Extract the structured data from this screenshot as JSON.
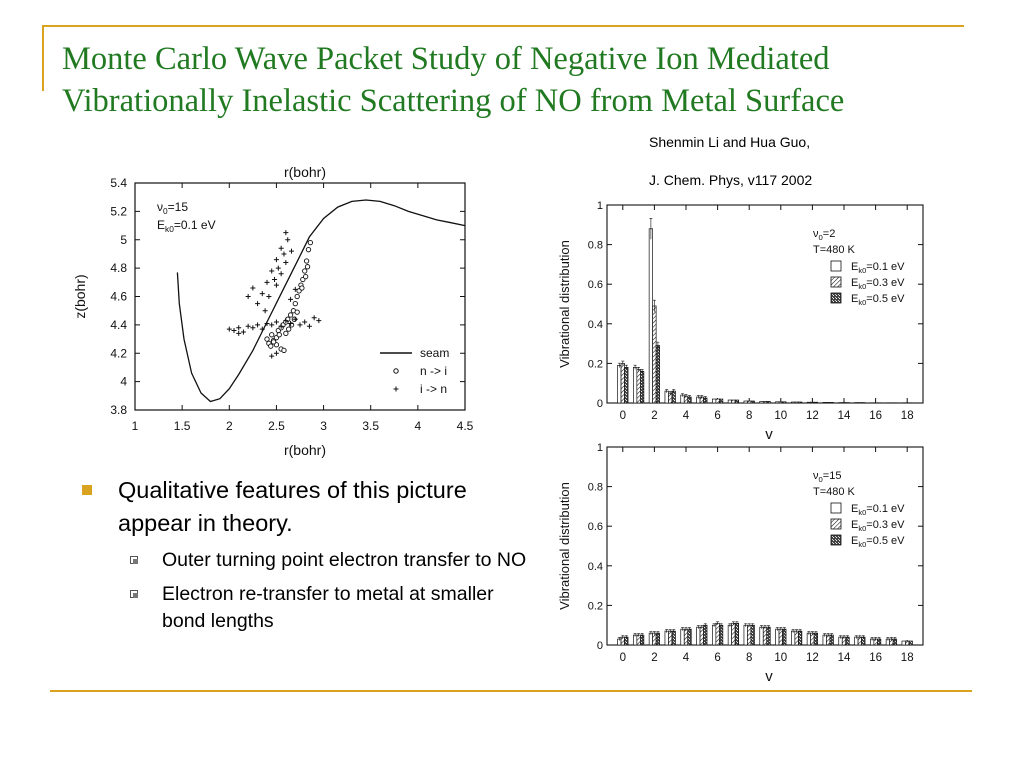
{
  "slide": {
    "title_lines": [
      "Monte Carlo Wave Packet Study of Negative Ion Mediated",
      "Vibrationally Inelastic Scattering of NO from Metal Surface"
    ],
    "citation_authors": "Shenmin Li and Hua Guo,",
    "citation_journal": "J. Chem. Phys, v117 2002",
    "bullets": [
      {
        "text": "Qualitative features of this picture appear in theory.",
        "sub": [
          "Outer turning point electron transfer to NO",
          "Electron re-transfer to metal at smaller bond lengths"
        ]
      }
    ],
    "colors": {
      "title": "#217a21",
      "accent": "#d9a31f"
    }
  },
  "chart_data": [
    {
      "type": "scatter",
      "xlabel": "r(bohr)",
      "top_label": "r(bohr)",
      "ylabel": "z(bohr)",
      "xlim": [
        1,
        4.5
      ],
      "ylim": [
        3.8,
        5.4
      ],
      "xticks": [
        "1",
        "1.5",
        "2",
        "2.5",
        "3",
        "3.5",
        "4",
        "4.5"
      ],
      "yticks": [
        "3.8",
        "4",
        "4.2",
        "4.4",
        "4.6",
        "4.8",
        "5",
        "5.2",
        "5.4"
      ],
      "annotation": {
        "v": "ν",
        "v_sub": "0",
        "v_val": "=15",
        "e": "E",
        "e_sub": "k0",
        "e_val": "=0.1 eV"
      },
      "legend": [
        "seam",
        "n -> i",
        "i -> n"
      ],
      "series": [
        {
          "name": "seam",
          "kind": "line",
          "x": [
            1.45,
            1.47,
            1.52,
            1.6,
            1.7,
            1.8,
            1.9,
            2.0,
            2.1,
            2.25,
            2.4,
            2.55,
            2.7,
            2.85,
            3.0,
            3.15,
            3.3,
            3.45,
            3.6,
            3.75,
            3.9,
            4.05,
            4.2,
            4.35,
            4.5
          ],
          "y": [
            4.77,
            4.55,
            4.3,
            4.06,
            3.92,
            3.86,
            3.88,
            3.95,
            4.05,
            4.22,
            4.42,
            4.62,
            4.82,
            5.02,
            5.15,
            5.23,
            5.27,
            5.28,
            5.27,
            5.24,
            5.2,
            5.17,
            5.14,
            5.12,
            5.1
          ]
        },
        {
          "name": "n -> i",
          "kind": "markers",
          "x": [
            2.4,
            2.42,
            2.45,
            2.47,
            2.5,
            2.52,
            2.55,
            2.57,
            2.6,
            2.62,
            2.65,
            2.68,
            2.7,
            2.72,
            2.74,
            2.76,
            2.78,
            2.8,
            2.82,
            2.84,
            2.86,
            2.6,
            2.63,
            2.66,
            2.69,
            2.72,
            2.5,
            2.55,
            2.58,
            2.44,
            2.47,
            2.53,
            2.77,
            2.81,
            2.83
          ],
          "y": [
            4.3,
            4.27,
            4.33,
            4.29,
            4.31,
            4.36,
            4.38,
            4.4,
            4.42,
            4.44,
            4.47,
            4.5,
            4.55,
            4.6,
            4.64,
            4.68,
            4.72,
            4.78,
            4.85,
            4.93,
            4.98,
            4.34,
            4.37,
            4.4,
            4.44,
            4.49,
            4.26,
            4.23,
            4.22,
            4.25,
            4.28,
            4.33,
            4.66,
            4.74,
            4.81
          ]
        },
        {
          "name": "i -> n",
          "kind": "markers",
          "x": [
            2.0,
            2.05,
            2.1,
            2.15,
            2.2,
            2.25,
            2.3,
            2.35,
            2.4,
            2.45,
            2.5,
            2.55,
            2.6,
            2.65,
            2.7,
            2.75,
            2.8,
            2.85,
            2.3,
            2.35,
            2.4,
            2.45,
            2.5,
            2.55,
            2.6,
            2.65,
            2.7,
            2.38,
            2.42,
            2.48,
            2.52,
            2.58,
            2.62,
            2.5,
            2.55,
            2.6,
            2.66,
            2.2,
            2.25,
            2.1,
            2.9,
            2.95,
            2.45,
            2.5
          ],
          "y": [
            4.37,
            4.36,
            4.38,
            4.35,
            4.39,
            4.38,
            4.4,
            4.37,
            4.41,
            4.4,
            4.42,
            4.39,
            4.43,
            4.41,
            4.44,
            4.4,
            4.42,
            4.39,
            4.55,
            4.62,
            4.7,
            4.78,
            4.86,
            4.94,
            5.05,
            4.58,
            4.65,
            4.5,
            4.6,
            4.72,
            4.8,
            4.9,
            5.0,
            4.68,
            4.76,
            4.84,
            4.92,
            4.6,
            4.66,
            4.34,
            4.45,
            4.43,
            4.18,
            4.2
          ]
        }
      ]
    },
    {
      "type": "bar",
      "xlabel": "v",
      "ylabel": "Vibrational distribution",
      "xlim": [
        -1,
        19
      ],
      "ylim": [
        0,
        1
      ],
      "xticks": [
        "0",
        "2",
        "4",
        "6",
        "8",
        "10",
        "12",
        "14",
        "16",
        "18"
      ],
      "yticks": [
        "0",
        "0.2",
        "0.4",
        "0.6",
        "0.8",
        "1"
      ],
      "annotation": [
        "ν",
        "0",
        "=2",
        "T=480 K"
      ],
      "categories": [
        "0",
        "1",
        "2",
        "3",
        "4",
        "5",
        "6",
        "7",
        "8",
        "9",
        "10",
        "11",
        "12",
        "13",
        "14",
        "15",
        "16",
        "17",
        "18"
      ],
      "series": [
        {
          "name": "E",
          "sub": "k0",
          "val": "=0.1 eV",
          "values": [
            0.19,
            0.18,
            0.88,
            0.06,
            0.04,
            0.03,
            0.02,
            0.015,
            0.01,
            0.008,
            0.006,
            0.005,
            0.004,
            0.003,
            0.002,
            0.002,
            0.001,
            0.001,
            0.001
          ]
        },
        {
          "name": "E",
          "sub": "k0",
          "val": "=0.3 eV",
          "values": [
            0.2,
            0.17,
            0.49,
            0.05,
            0.035,
            0.03,
            0.02,
            0.015,
            0.01,
            0.008,
            0.006,
            0.005,
            0.004,
            0.003,
            0.002,
            0.002,
            0.001,
            0.001,
            0.001
          ]
        },
        {
          "name": "E",
          "sub": "k0",
          "val": "=0.5 eV",
          "values": [
            0.18,
            0.16,
            0.29,
            0.06,
            0.03,
            0.025,
            0.02,
            0.015,
            0.01,
            0.008,
            0.006,
            0.005,
            0.004,
            0.003,
            0.002,
            0.002,
            0.001,
            0.001,
            0.001
          ]
        }
      ]
    },
    {
      "type": "bar",
      "xlabel": "v",
      "ylabel": "Vibrational distribution",
      "xlim": [
        -1,
        19
      ],
      "ylim": [
        0,
        1
      ],
      "xticks": [
        "0",
        "2",
        "4",
        "6",
        "8",
        "10",
        "12",
        "14",
        "16",
        "18"
      ],
      "yticks": [
        "0",
        "0.2",
        "0.4",
        "0.6",
        "0.8",
        "1"
      ],
      "annotation": [
        "ν",
        "0",
        "=15",
        "T=480 K"
      ],
      "categories": [
        "0",
        "1",
        "2",
        "3",
        "4",
        "5",
        "6",
        "7",
        "8",
        "9",
        "10",
        "11",
        "12",
        "13",
        "14",
        "15",
        "16",
        "17",
        "18"
      ],
      "series": [
        {
          "name": "E",
          "sub": "k0",
          "val": "=0.1 eV",
          "values": [
            0.03,
            0.05,
            0.06,
            0.07,
            0.08,
            0.09,
            0.1,
            0.1,
            0.1,
            0.09,
            0.08,
            0.07,
            0.06,
            0.05,
            0.04,
            0.04,
            0.03,
            0.03,
            0.02
          ]
        },
        {
          "name": "E",
          "sub": "k0",
          "val": "=0.3 eV",
          "values": [
            0.04,
            0.05,
            0.06,
            0.07,
            0.08,
            0.09,
            0.11,
            0.11,
            0.1,
            0.09,
            0.08,
            0.07,
            0.06,
            0.05,
            0.04,
            0.04,
            0.03,
            0.03,
            0.02
          ]
        },
        {
          "name": "E",
          "sub": "k0",
          "val": "=0.5 eV",
          "values": [
            0.04,
            0.05,
            0.06,
            0.07,
            0.08,
            0.1,
            0.1,
            0.11,
            0.1,
            0.09,
            0.08,
            0.07,
            0.06,
            0.05,
            0.04,
            0.04,
            0.03,
            0.03,
            0.02
          ]
        }
      ]
    }
  ]
}
